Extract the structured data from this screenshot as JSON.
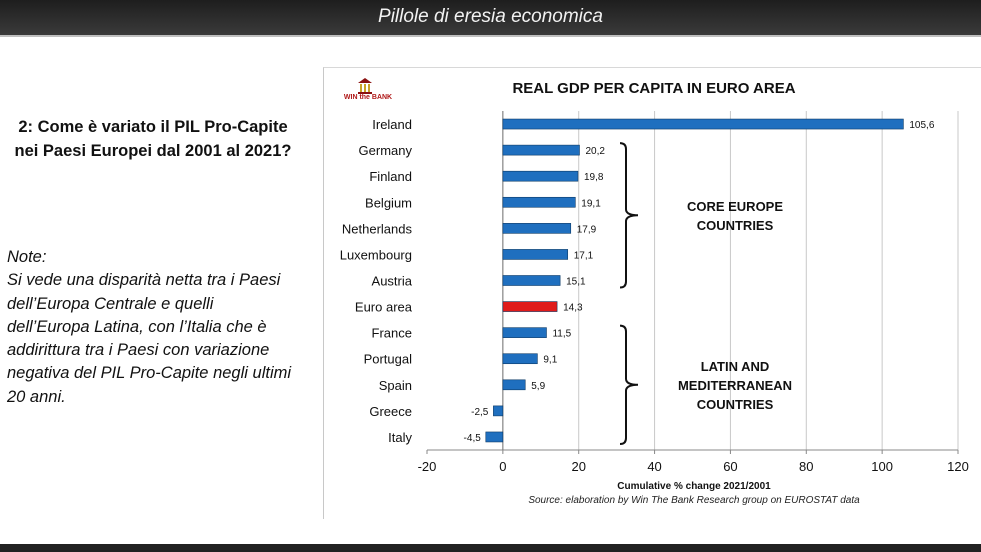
{
  "header": {
    "title": "Pillole di eresia economica"
  },
  "question": "2: Come è variato il PIL Pro-Capite nei Paesi Europei dal 2001 al 2021?",
  "note": {
    "heading": "Note:",
    "text": "Si vede una disparità netta tra i Paesi dell’Europa Centrale e quelli dell’Europa Latina, con l’Italia che è addirittura tra i Paesi con variazione negativa del PIL Pro-Capite negli ultimi 20 anni."
  },
  "logo": {
    "text": "WIN the BANK"
  },
  "chart_data": {
    "type": "bar",
    "orientation": "horizontal",
    "title": "REAL GDP PER CAPITA IN EURO AREA",
    "xlabel": "Cumulative % change 2021/2001",
    "source": "Source: elaboration by Win The Bank Research group on EUROSTAT data",
    "categories": [
      "Ireland",
      "Germany",
      "Finland",
      "Belgium",
      "Netherlands",
      "Luxembourg",
      "Austria",
      "Euro area",
      "France",
      "Portugal",
      "Spain",
      "Greece",
      "Italy"
    ],
    "values": [
      105.6,
      20.2,
      19.8,
      19.1,
      17.9,
      17.1,
      15.1,
      14.3,
      11.5,
      9.1,
      5.9,
      -2.5,
      -4.5
    ],
    "value_labels": [
      "105,6",
      "20,2",
      "19,8",
      "19,1",
      "17,9",
      "17,1",
      "15,1",
      "14,3",
      "11,5",
      "9,1",
      "5,9",
      "-2,5",
      "-4,5"
    ],
    "highlight_category": "Euro area",
    "colors": {
      "bar": "#1f6fbf",
      "highlight": "#e01b1b",
      "grid": "#c8c8c8"
    },
    "xlim": [
      -20,
      120
    ],
    "xticks": [
      -20,
      0,
      20,
      40,
      60,
      80,
      100,
      120
    ],
    "grid": true,
    "groups": [
      {
        "label_lines": [
          "CORE EUROPE",
          "COUNTRIES"
        ],
        "from": "Germany",
        "to": "Austria"
      },
      {
        "label_lines": [
          "LATIN AND",
          "MEDITERRANEAN",
          "COUNTRIES"
        ],
        "from": "France",
        "to": "Italy"
      }
    ]
  }
}
